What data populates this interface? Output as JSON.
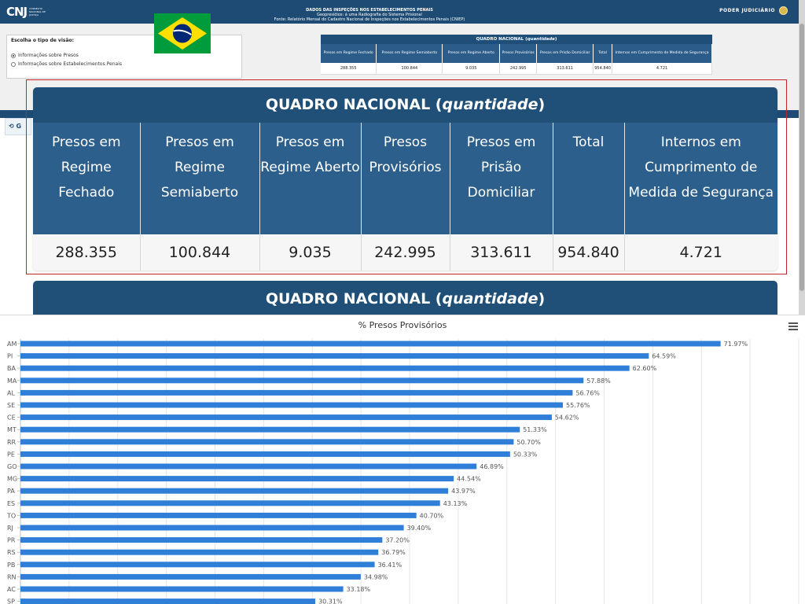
{
  "header": {
    "logo_mark": "CNJ",
    "logo_text": "Conselho Nacional de Justiça",
    "line1": "DADOS DAS INSPEÇÕES NOS ESTABELECIMENTOS PENAIS",
    "line2": "Geopresídios: á uma Radiografia do Sistema Prisional",
    "line3": "Fonte: Relatório Mensal do Cadastro Nacional de Inspeções nos Estabelecimentos Penais (CNIEP)",
    "poder": "PODER JUDICIÁRIO"
  },
  "view_box": {
    "title": "Escolha o tipo de visão:",
    "option1": "Informações sobre Presos",
    "option2": "Informações sobre Estabelecimentos Penais"
  },
  "side_button": "G",
  "quadro": {
    "title_main": "QUADRO NACIONAL (",
    "title_em": "quantidade",
    "title_end": ")",
    "headers": [
      "Presos em Regime Fechado",
      "Presos em Regime Semiaberto",
      "Presos em Regime Aberto",
      "Presos Provisórios",
      "Presos em Prisão Domiciliar",
      "Total",
      "Internos em Cumprimento de Medida de Segurança"
    ],
    "values": [
      "288.355",
      "100.844",
      "9.035",
      "242.995",
      "313.611",
      "954.840",
      "4.721"
    ]
  },
  "chart_data": {
    "type": "bar",
    "orientation": "horizontal",
    "title": "% Presos Provisórios",
    "categories": [
      "AM",
      "PI",
      "BA",
      "MA",
      "AL",
      "SE",
      "CE",
      "MT",
      "RR",
      "PE",
      "GO",
      "MG",
      "PA",
      "ES",
      "TO",
      "RJ",
      "PR",
      "RS",
      "PB",
      "RN",
      "AC",
      "SP"
    ],
    "values": [
      71.97,
      64.59,
      62.6,
      57.88,
      56.76,
      55.76,
      54.62,
      51.33,
      50.7,
      50.33,
      46.89,
      44.54,
      43.97,
      43.13,
      40.7,
      39.4,
      37.2,
      36.79,
      36.41,
      34.98,
      33.18,
      30.31
    ],
    "labels": [
      "71.97%",
      "64.59%",
      "62.60%",
      "57.88%",
      "56.76%",
      "55.76%",
      "54.62%",
      "51.33%",
      "50.70%",
      "50.33%",
      "46.89%",
      "44.54%",
      "43.97%",
      "43.13%",
      "40.70%",
      "39.40%",
      "37.20%",
      "36.79%",
      "36.41%",
      "34.98%",
      "33.18%",
      "30.31%"
    ],
    "bar_color": "#2f7ed8",
    "grid": true,
    "xlim": [
      0,
      80
    ]
  }
}
